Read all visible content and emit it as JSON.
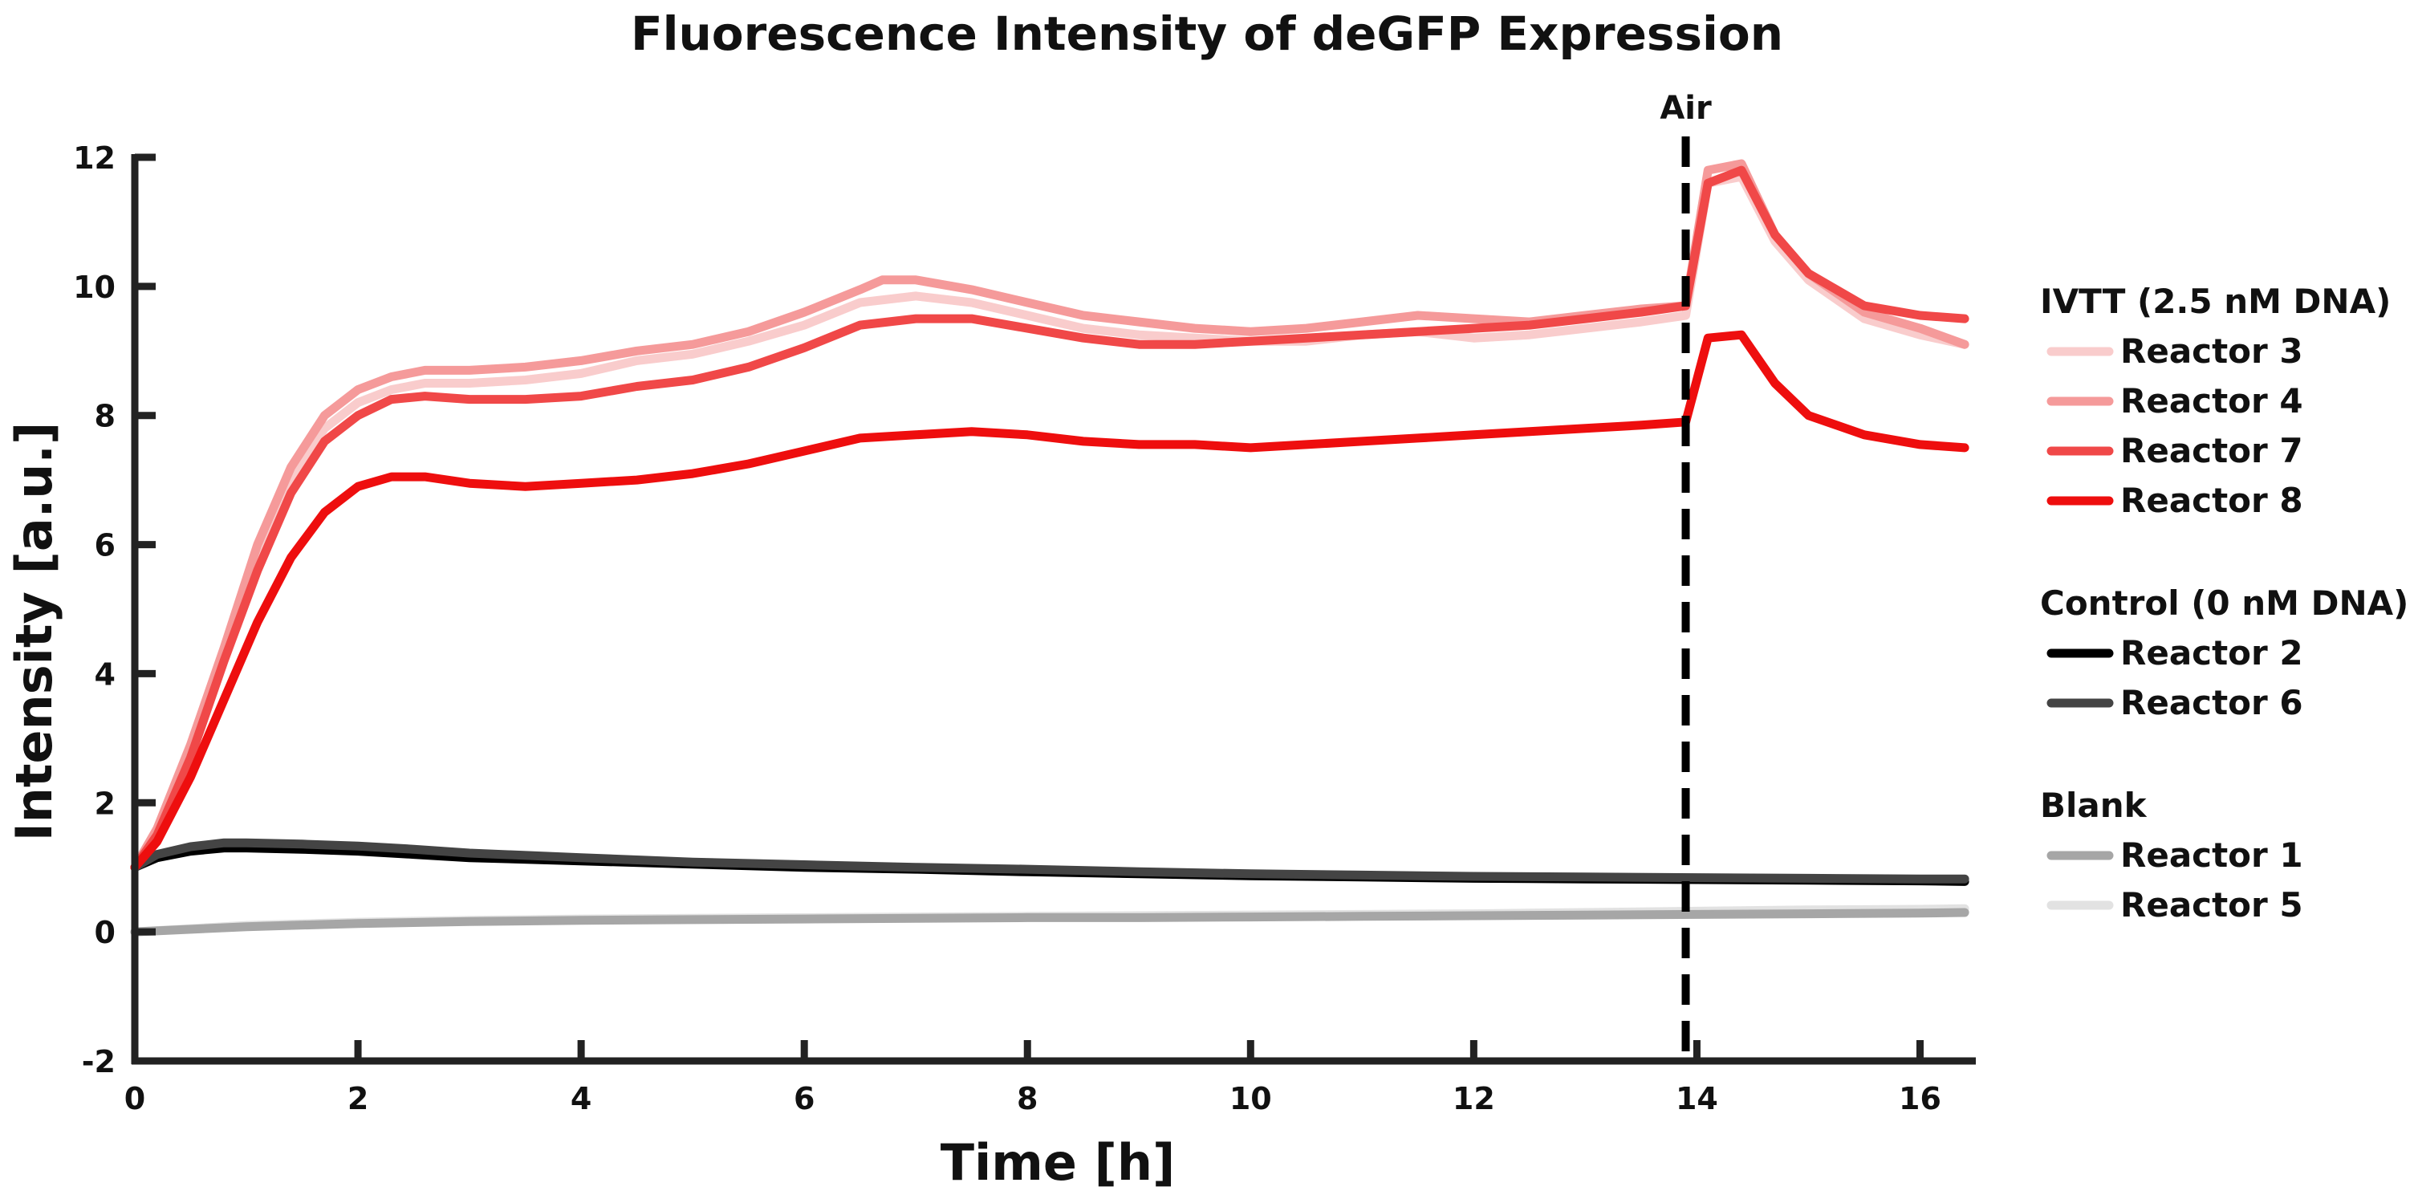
{
  "chart_data": {
    "type": "line",
    "title": "Fluorescence Intensity of deGFP Expression",
    "xlabel": "Time [h]",
    "ylabel": "Intensity [a.u.]",
    "xlim": [
      0,
      16.5
    ],
    "ylim": [
      -2,
      12
    ],
    "x_ticks": [
      0,
      2,
      4,
      6,
      8,
      10,
      12,
      14,
      16
    ],
    "y_ticks": [
      -2,
      0,
      2,
      4,
      6,
      8,
      10,
      12
    ],
    "x_tick_labels": [
      "0",
      "2",
      "4",
      "6",
      "8",
      "10",
      "12",
      "14",
      "16"
    ],
    "y_tick_labels": [
      "-2",
      "0",
      "2",
      "4",
      "6",
      "8",
      "10",
      "12"
    ],
    "grid": false,
    "legend_position": "right",
    "annotations": [
      {
        "label": "Air",
        "x": 13.9,
        "style": "dashed-vertical-line",
        "color": "#000000"
      }
    ],
    "legend_groups": [
      {
        "header": "IVTT (2.5 nM DNA)",
        "series": [
          "Reactor 3",
          "Reactor 4",
          "Reactor 7",
          "Reactor 8"
        ]
      },
      {
        "header": "Control (0 nM DNA)",
        "series": [
          "Reactor 2",
          "Reactor 6"
        ]
      },
      {
        "header": "Blank",
        "series": [
          "Reactor 1",
          "Reactor 5"
        ]
      }
    ],
    "series": [
      {
        "name": "Reactor 3",
        "color": "#f9cccc",
        "x": [
          0,
          0.2,
          0.5,
          0.8,
          1.1,
          1.4,
          1.7,
          2.0,
          2.3,
          2.6,
          3.0,
          3.5,
          4.0,
          4.5,
          5.0,
          5.5,
          6.0,
          6.5,
          7.0,
          7.5,
          8.0,
          8.5,
          9.0,
          9.5,
          10.0,
          10.5,
          11.0,
          11.5,
          12.0,
          12.5,
          13.0,
          13.5,
          13.9,
          14.1,
          14.4,
          14.7,
          15.0,
          15.5,
          16.0,
          16.4
        ],
        "y": [
          1.0,
          1.6,
          2.8,
          4.3,
          5.8,
          7.0,
          7.8,
          8.2,
          8.4,
          8.5,
          8.5,
          8.55,
          8.65,
          8.85,
          8.95,
          9.15,
          9.4,
          9.75,
          9.85,
          9.75,
          9.55,
          9.35,
          9.25,
          9.2,
          9.15,
          9.15,
          9.25,
          9.3,
          9.2,
          9.25,
          9.35,
          9.45,
          9.55,
          11.6,
          11.7,
          10.7,
          10.1,
          9.5,
          9.25,
          9.1
        ]
      },
      {
        "name": "Reactor 4",
        "color": "#f59a9a",
        "x": [
          0,
          0.2,
          0.5,
          0.8,
          1.1,
          1.4,
          1.7,
          2.0,
          2.3,
          2.6,
          3.0,
          3.5,
          4.0,
          4.5,
          5.0,
          5.5,
          6.0,
          6.5,
          6.7,
          7.0,
          7.5,
          8.0,
          8.5,
          9.0,
          9.5,
          10.0,
          10.5,
          11.0,
          11.5,
          12.0,
          12.5,
          13.0,
          13.5,
          13.9,
          14.1,
          14.4,
          14.7,
          15.0,
          15.5,
          16.0,
          16.4
        ],
        "y": [
          1.0,
          1.6,
          2.9,
          4.4,
          6.0,
          7.2,
          8.0,
          8.4,
          8.6,
          8.7,
          8.7,
          8.75,
          8.85,
          9.0,
          9.1,
          9.3,
          9.6,
          9.95,
          10.1,
          10.1,
          9.95,
          9.75,
          9.55,
          9.45,
          9.35,
          9.3,
          9.35,
          9.45,
          9.55,
          9.5,
          9.45,
          9.55,
          9.65,
          9.7,
          11.8,
          11.9,
          10.8,
          10.2,
          9.6,
          9.35,
          9.1
        ]
      },
      {
        "name": "Reactor 7",
        "color": "#f04848",
        "x": [
          0,
          0.2,
          0.5,
          0.8,
          1.1,
          1.4,
          1.7,
          2.0,
          2.3,
          2.6,
          3.0,
          3.5,
          4.0,
          4.5,
          5.0,
          5.5,
          6.0,
          6.5,
          7.0,
          7.5,
          8.0,
          8.5,
          9.0,
          9.5,
          10.0,
          10.5,
          11.0,
          11.5,
          12.0,
          12.5,
          13.0,
          13.5,
          13.9,
          14.1,
          14.4,
          14.7,
          15.0,
          15.5,
          16.0,
          16.4
        ],
        "y": [
          1.0,
          1.5,
          2.7,
          4.2,
          5.6,
          6.8,
          7.6,
          8.0,
          8.25,
          8.3,
          8.25,
          8.25,
          8.3,
          8.45,
          8.55,
          8.75,
          9.05,
          9.4,
          9.5,
          9.5,
          9.35,
          9.2,
          9.1,
          9.1,
          9.15,
          9.2,
          9.25,
          9.3,
          9.35,
          9.4,
          9.5,
          9.6,
          9.7,
          11.6,
          11.8,
          10.8,
          10.2,
          9.7,
          9.55,
          9.5
        ]
      },
      {
        "name": "Reactor 8",
        "color": "#ee0e0e",
        "x": [
          0,
          0.2,
          0.5,
          0.8,
          1.1,
          1.4,
          1.7,
          2.0,
          2.3,
          2.6,
          3.0,
          3.5,
          4.0,
          4.5,
          5.0,
          5.5,
          6.0,
          6.5,
          7.0,
          7.5,
          8.0,
          8.5,
          9.0,
          9.5,
          10.0,
          10.5,
          11.0,
          11.5,
          12.0,
          12.5,
          13.0,
          13.5,
          13.9,
          14.1,
          14.4,
          14.7,
          15.0,
          15.5,
          16.0,
          16.4
        ],
        "y": [
          1.0,
          1.4,
          2.4,
          3.6,
          4.8,
          5.8,
          6.5,
          6.9,
          7.05,
          7.05,
          6.95,
          6.9,
          6.95,
          7.0,
          7.1,
          7.25,
          7.45,
          7.65,
          7.7,
          7.75,
          7.7,
          7.6,
          7.55,
          7.55,
          7.5,
          7.55,
          7.6,
          7.65,
          7.7,
          7.75,
          7.8,
          7.85,
          7.9,
          9.2,
          9.25,
          8.5,
          8.0,
          7.7,
          7.55,
          7.5
        ]
      },
      {
        "name": "Reactor 2",
        "color": "#000000",
        "x": [
          0,
          0.2,
          0.5,
          0.8,
          1.0,
          1.5,
          2.0,
          2.5,
          3.0,
          4.0,
          5.0,
          6.0,
          7.0,
          8.0,
          9.0,
          10.0,
          11.0,
          12.0,
          13.0,
          14.0,
          15.0,
          16.0,
          16.4
        ],
        "y": [
          1.0,
          1.15,
          1.25,
          1.3,
          1.3,
          1.28,
          1.25,
          1.2,
          1.15,
          1.1,
          1.05,
          1.0,
          0.97,
          0.93,
          0.9,
          0.87,
          0.85,
          0.83,
          0.82,
          0.81,
          0.8,
          0.79,
          0.78
        ]
      },
      {
        "name": "Reactor 6",
        "color": "#444444",
        "x": [
          0,
          0.2,
          0.5,
          0.8,
          1.0,
          1.5,
          2.0,
          2.5,
          3.0,
          4.0,
          5.0,
          6.0,
          7.0,
          8.0,
          9.0,
          10.0,
          11.0,
          12.0,
          13.0,
          14.0,
          15.0,
          16.0,
          16.4
        ],
        "y": [
          1.0,
          1.2,
          1.32,
          1.38,
          1.38,
          1.36,
          1.33,
          1.28,
          1.22,
          1.15,
          1.08,
          1.04,
          1.0,
          0.97,
          0.93,
          0.9,
          0.88,
          0.86,
          0.85,
          0.84,
          0.83,
          0.82,
          0.82
        ]
      },
      {
        "name": "Reactor 1",
        "color": "#a6a6a6",
        "x": [
          0,
          1.0,
          2.0,
          3.0,
          4.0,
          5.0,
          6.0,
          7.0,
          8.0,
          9.0,
          10.0,
          11.0,
          12.0,
          13.0,
          14.0,
          15.0,
          16.0,
          16.4
        ],
        "y": [
          0.0,
          0.08,
          0.13,
          0.16,
          0.18,
          0.19,
          0.2,
          0.21,
          0.22,
          0.22,
          0.23,
          0.24,
          0.25,
          0.26,
          0.27,
          0.28,
          0.29,
          0.3
        ]
      },
      {
        "name": "Reactor 5",
        "color": "#e2e2e2",
        "x": [
          0,
          1.0,
          2.0,
          3.0,
          4.0,
          5.0,
          6.0,
          7.0,
          8.0,
          9.0,
          10.0,
          11.0,
          12.0,
          13.0,
          14.0,
          15.0,
          16.0,
          16.4
        ],
        "y": [
          0.0,
          0.1,
          0.15,
          0.18,
          0.2,
          0.21,
          0.22,
          0.23,
          0.24,
          0.25,
          0.26,
          0.27,
          0.28,
          0.3,
          0.32,
          0.34,
          0.35,
          0.36
        ]
      }
    ]
  }
}
